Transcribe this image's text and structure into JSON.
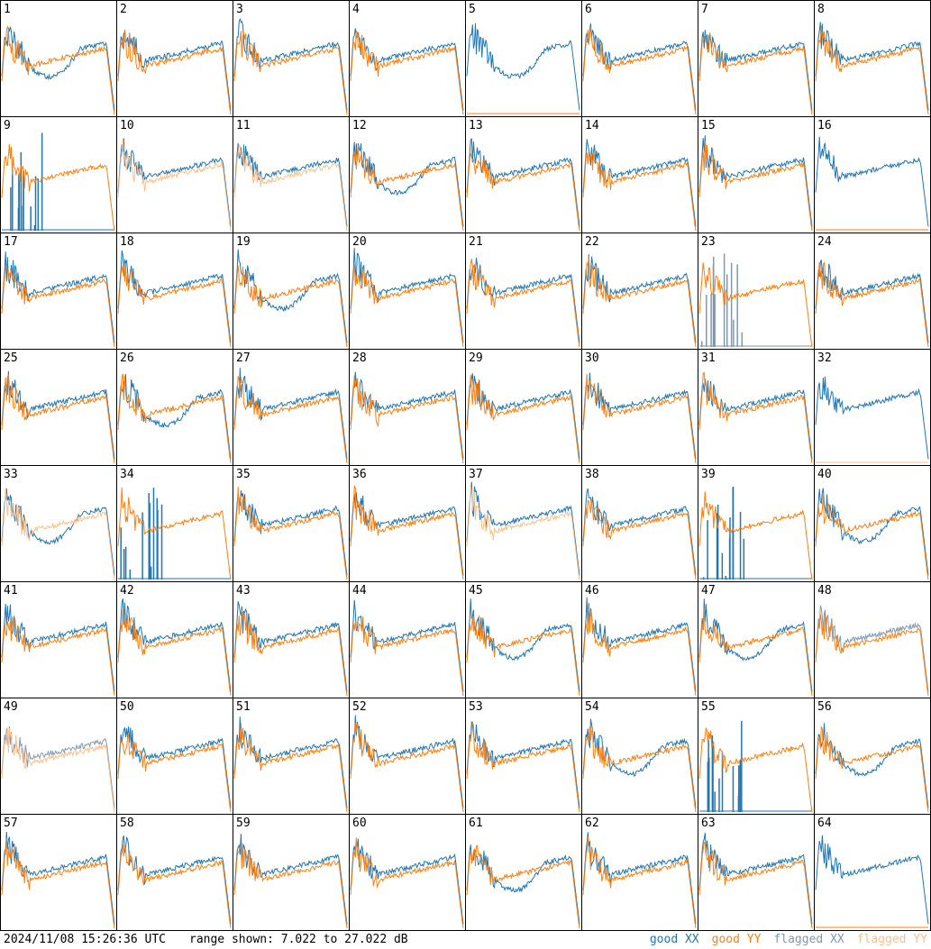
{
  "chart_data": {
    "type": "line",
    "layout": "small-multiples-8x8",
    "panels": [
      "1",
      "2",
      "3",
      "4",
      "5",
      "6",
      "7",
      "8",
      "9",
      "10",
      "11",
      "12",
      "13",
      "14",
      "15",
      "16",
      "17",
      "18",
      "19",
      "20",
      "21",
      "22",
      "23",
      "24",
      "25",
      "26",
      "27",
      "28",
      "29",
      "30",
      "31",
      "32",
      "33",
      "34",
      "35",
      "36",
      "37",
      "38",
      "39",
      "40",
      "41",
      "42",
      "43",
      "44",
      "45",
      "46",
      "47",
      "48",
      "49",
      "50",
      "51",
      "52",
      "53",
      "54",
      "55",
      "56",
      "57",
      "58",
      "59",
      "60",
      "61",
      "62",
      "63",
      "64"
    ],
    "ylim": [
      7.022,
      27.022
    ],
    "yunit": "dB",
    "series": [
      {
        "name": "good XX",
        "color": "#1f77b4"
      },
      {
        "name": "good YY",
        "color": "#ff7f0e"
      },
      {
        "name": "flagged XX",
        "color": "#7f99b2"
      },
      {
        "name": "flagged YY",
        "color": "#ffbf87"
      }
    ],
    "panel_styles": {
      "flaggedXX": [
        "23",
        "48",
        "49"
      ],
      "flaggedYY": [
        "10",
        "11",
        "32",
        "33",
        "37",
        "49"
      ],
      "deadYY": [
        "5",
        "16",
        "32",
        "64"
      ],
      "deadXX": [
        "9",
        "23",
        "34",
        "39",
        "55"
      ]
    }
  },
  "footer": {
    "timestamp": "2024/11/08 15:26:36 UTC",
    "range_text": "range shown: 7.022 to 27.022 dB",
    "legend": [
      {
        "label_word": "good",
        "label_pol": "XX",
        "color": "#1f77b4"
      },
      {
        "label_word": "good",
        "label_pol": "YY",
        "color": "#ff7f0e"
      },
      {
        "label_word": "flagged",
        "label_pol": "XX",
        "color": "#7f99b2"
      },
      {
        "label_word": "flagged",
        "label_pol": "YY",
        "color": "#ffbf87"
      }
    ]
  }
}
